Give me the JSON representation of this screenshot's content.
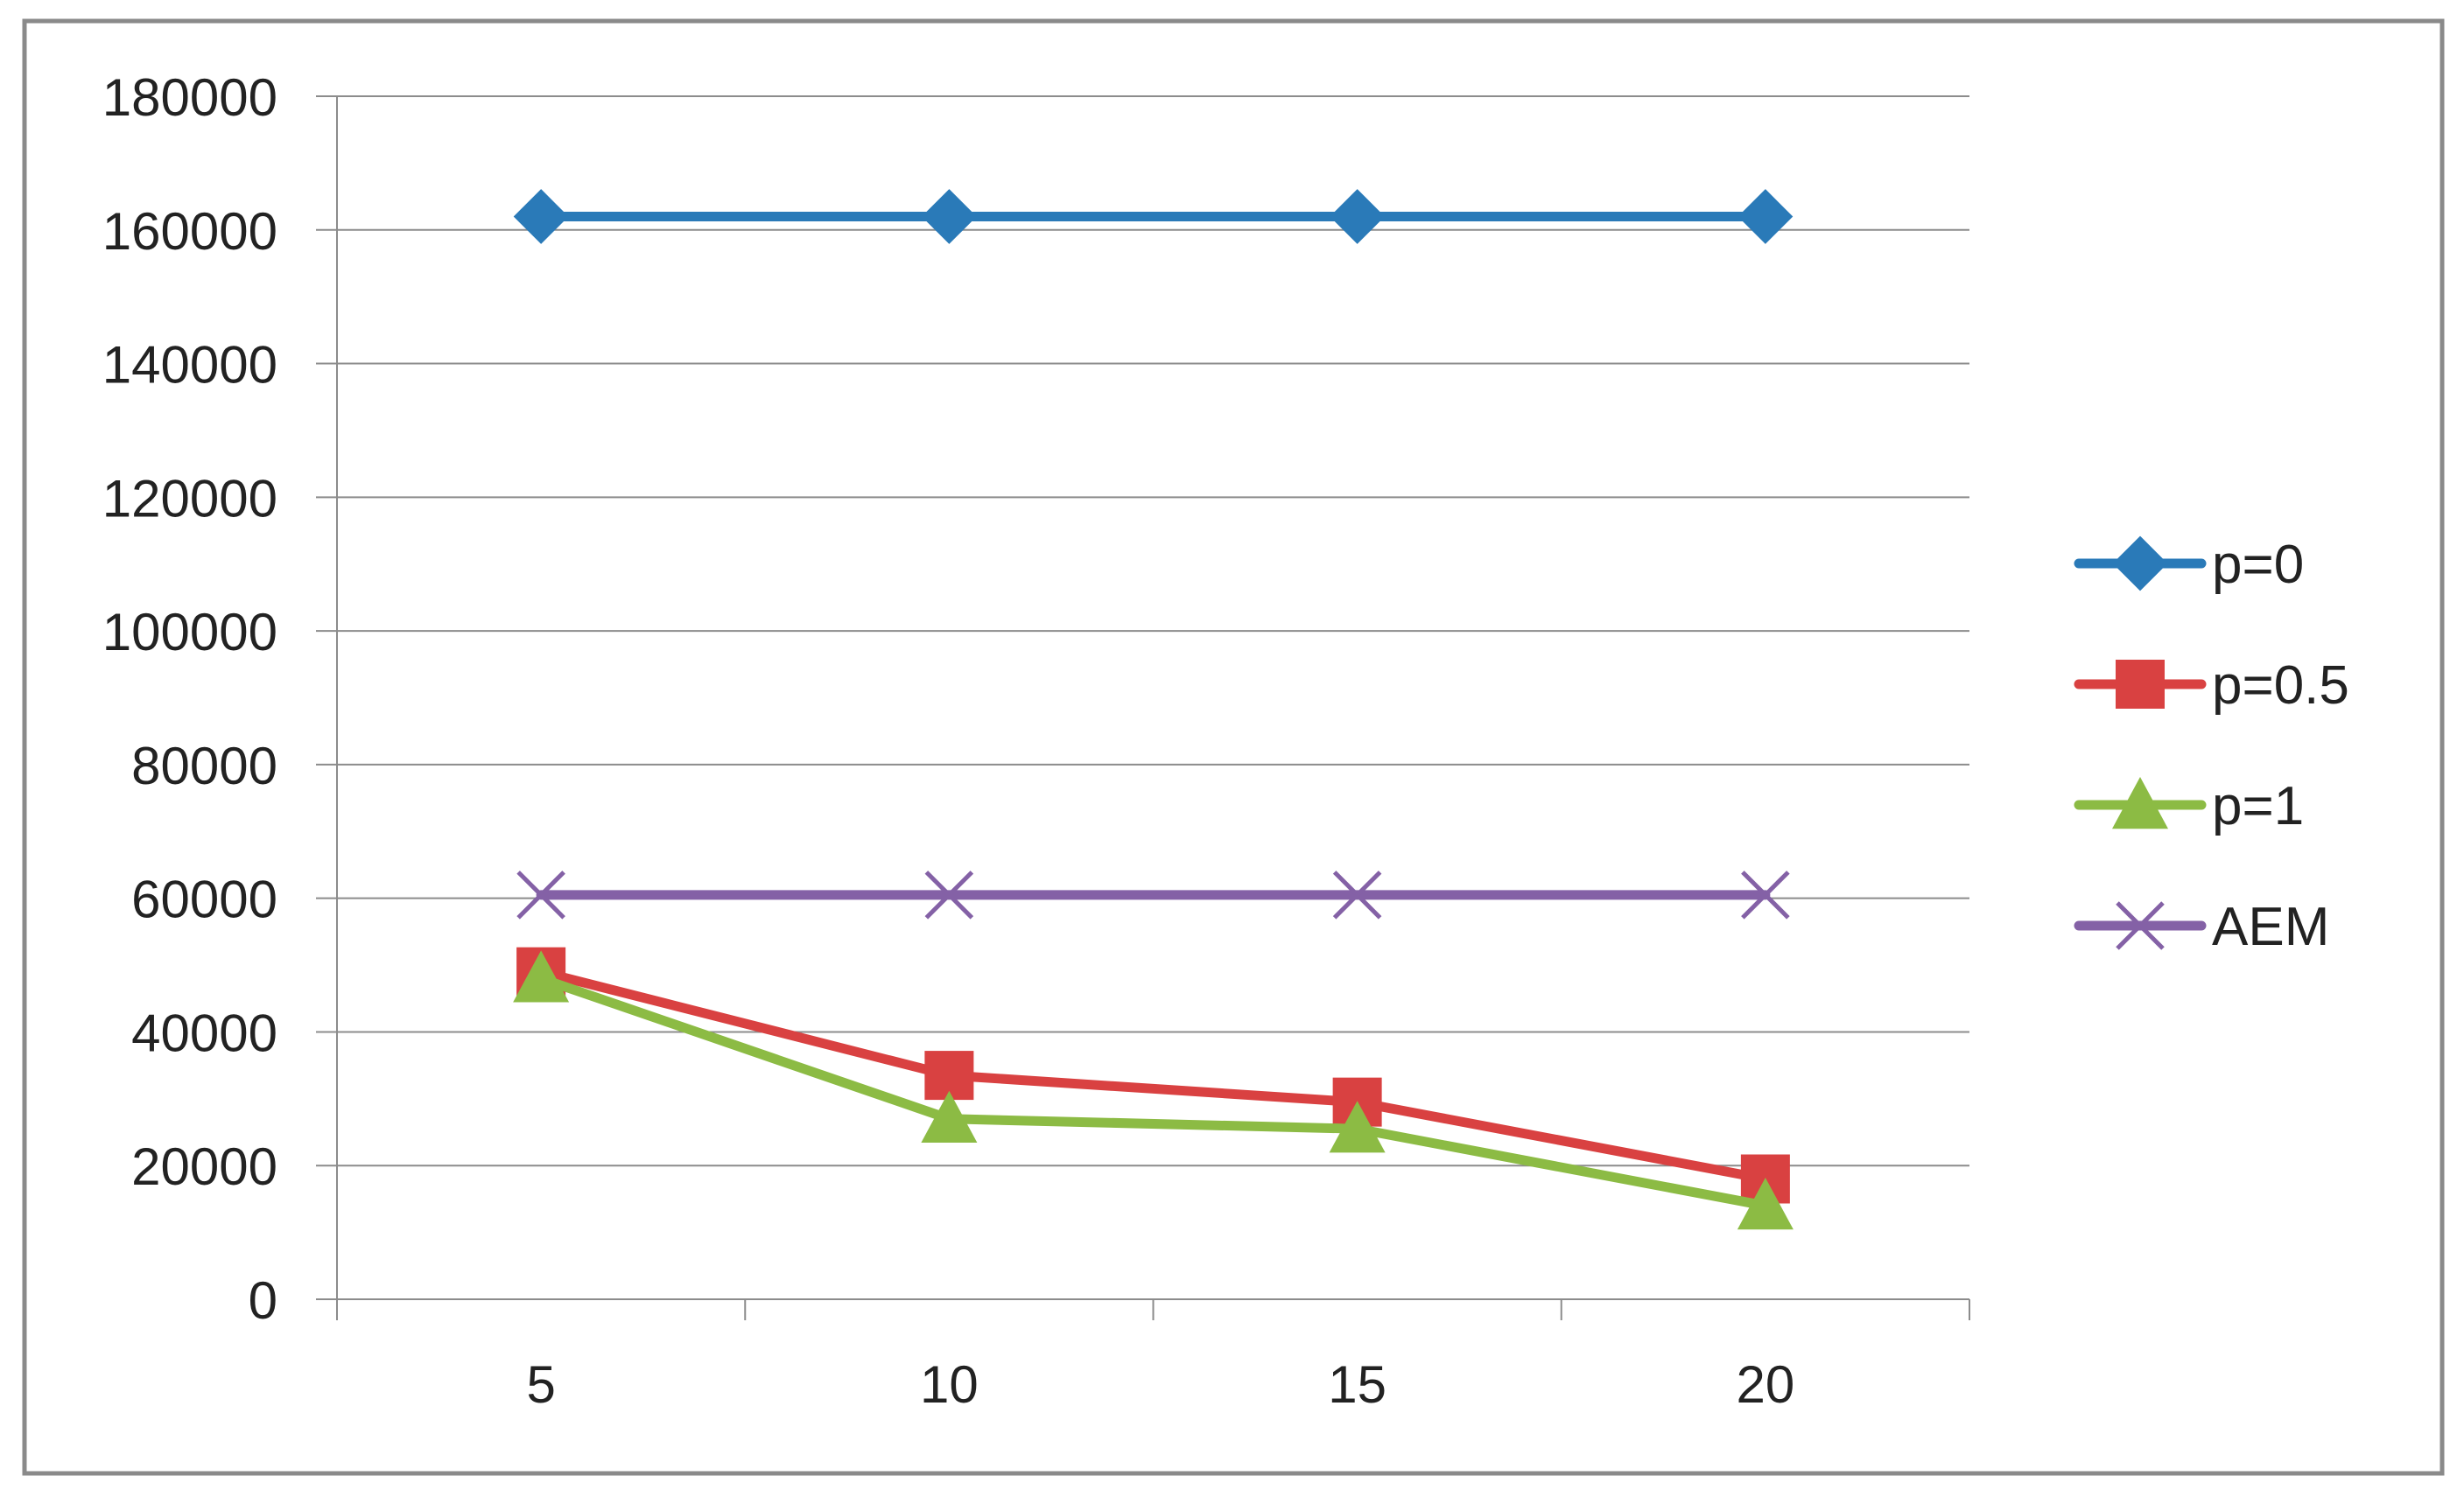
{
  "chart_data": {
    "type": "line",
    "title": "",
    "xlabel": "",
    "ylabel": "",
    "categories": [
      "5",
      "10",
      "15",
      "20"
    ],
    "x": [
      5,
      10,
      15,
      20
    ],
    "ylim": [
      0,
      180000
    ],
    "yticks": [
      0,
      20000,
      40000,
      60000,
      80000,
      100000,
      120000,
      140000,
      160000,
      180000
    ],
    "grid": true,
    "legend_position": "right",
    "series": [
      {
        "name": "p=0",
        "color": "#2a7ab8",
        "marker": "diamond",
        "values": [
          162000,
          162000,
          162000,
          162000
        ]
      },
      {
        "name": "p=0.5",
        "color": "#d94141",
        "marker": "square",
        "values": [
          49000,
          33500,
          29500,
          18000
        ]
      },
      {
        "name": "p=1",
        "color": "#8cbb44",
        "marker": "triangle",
        "values": [
          48000,
          27000,
          25500,
          14000
        ]
      },
      {
        "name": "AEM",
        "color": "#8461a6",
        "marker": "x",
        "values": [
          60500,
          60500,
          60500,
          60500
        ]
      }
    ]
  }
}
